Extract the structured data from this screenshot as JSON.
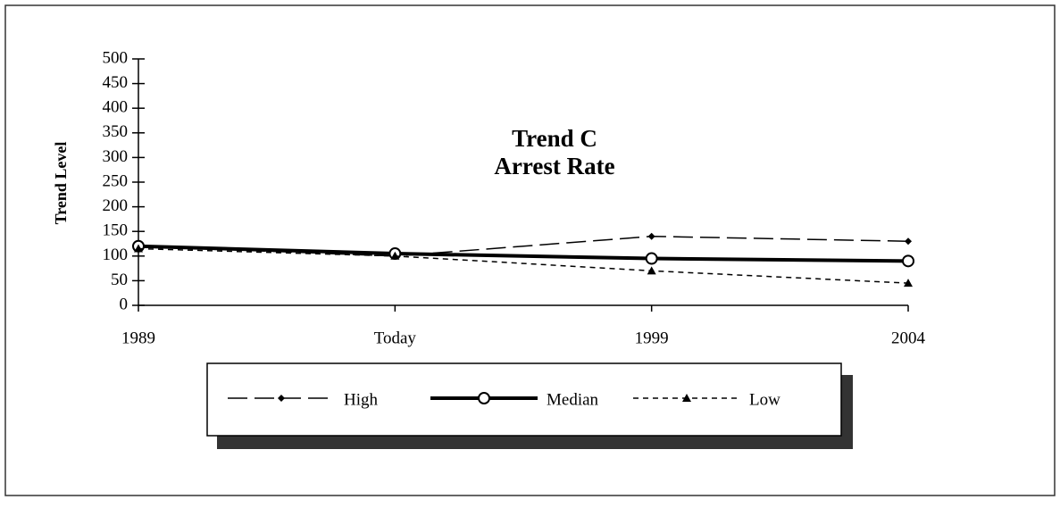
{
  "chart_data": {
    "type": "line",
    "title": "Trend C",
    "subtitle": "Arrest Rate",
    "y_label": "Trend Level",
    "categories": [
      "1989",
      "Today",
      "1999",
      "2004"
    ],
    "series": [
      {
        "name": "High",
        "color": "#000000",
        "values": [
          120,
          100,
          140,
          130
        ]
      },
      {
        "name": "Median",
        "color": "#000000",
        "values": [
          120,
          105,
          95,
          90
        ]
      },
      {
        "name": "Low",
        "color": "#000000",
        "values": [
          115,
          100,
          70,
          45
        ]
      }
    ],
    "ylim": [
      0,
      500
    ],
    "yticks": [
      0,
      50,
      100,
      150,
      200,
      250,
      300,
      350,
      400,
      450,
      500
    ],
    "legend": "bottom",
    "grid": false
  }
}
